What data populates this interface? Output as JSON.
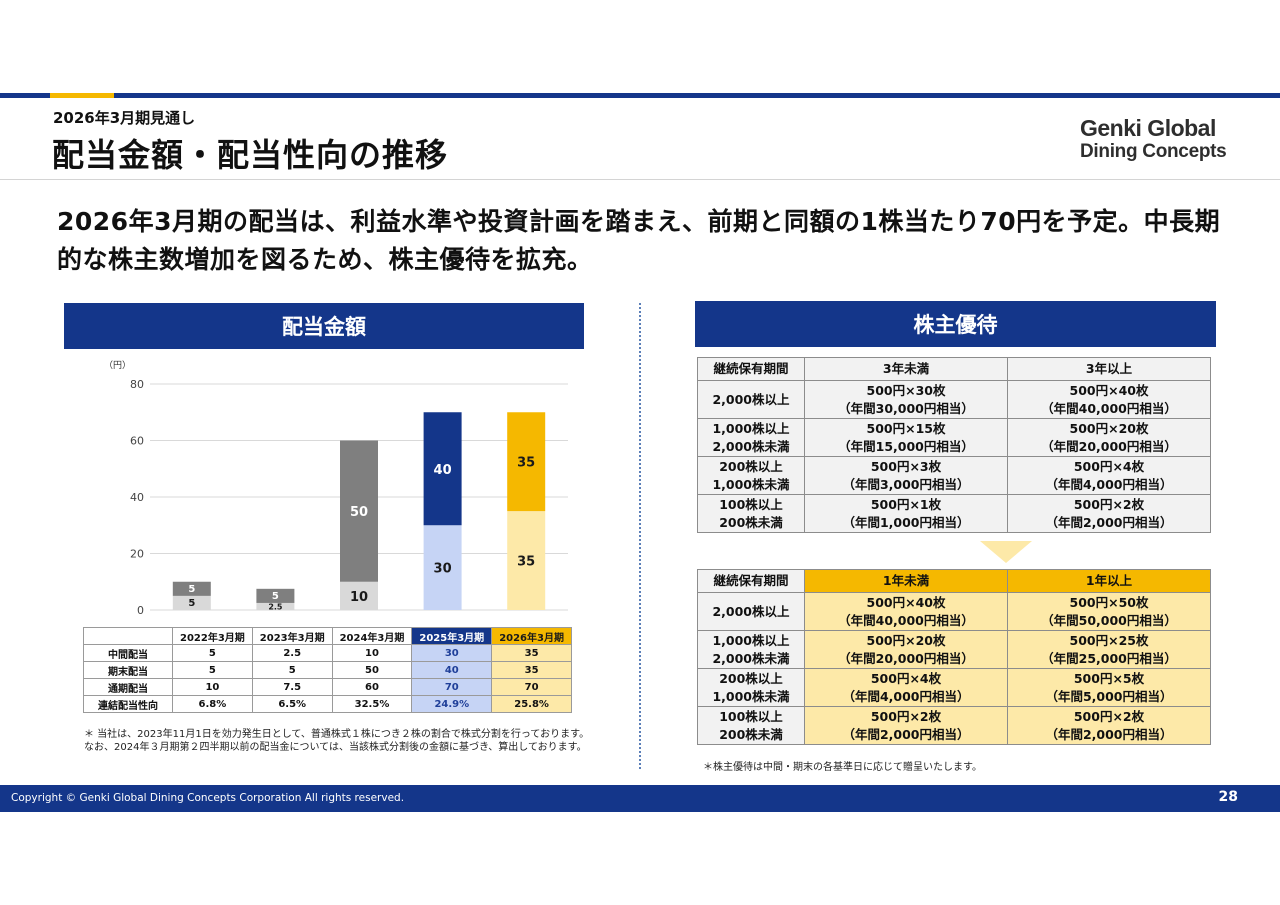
{
  "header": {
    "subtitle": "2026年3月期見通し",
    "title": "配当金額・配当性向の推移",
    "logo_line1": "Genki Global",
    "logo_line2": "Dining Concepts"
  },
  "lead": "2026年3月期の配当は、利益水準や投資計画を踏まえ、前期と同額の1株当たり70円を予定。中長期的な株主数増加を図るため、株主優待を拡充。",
  "left": {
    "heading": "配当金額",
    "note": "＊ 当社は、2023年11月1日を効力発生日として、普通株式１株につき２株の割合で株式分割を行っております。なお、2024年３月期第２四半期以前の配当金については、当該株式分割後の金額に基づき、算出しております。"
  },
  "chart_data": {
    "type": "bar",
    "stacked": true,
    "unit_label": "（円）",
    "categories": [
      "2022年3月期",
      "2023年3月期",
      "2024年3月期",
      "2025年3月期",
      "2026年3月期"
    ],
    "series": [
      {
        "name": "中間配当",
        "values": [
          5,
          2.5,
          10,
          30,
          35
        ],
        "labels": [
          "5",
          "2.5",
          "10",
          "30",
          "35"
        ]
      },
      {
        "name": "期末配当",
        "values": [
          5,
          5,
          50,
          40,
          35
        ],
        "labels": [
          "5",
          "5",
          "50",
          "40",
          "35"
        ]
      }
    ],
    "bar_colors": {
      "interim": [
        "#d9d9d9",
        "#d9d9d9",
        "#d9d9d9",
        "#c6d4f5",
        "#fde9a8"
      ],
      "final": [
        "#7f7f7f",
        "#7f7f7f",
        "#7f7f7f",
        "#14368a",
        "#f5b800"
      ]
    },
    "yticks": [
      0,
      20,
      40,
      60,
      80
    ],
    "ylim": [
      0,
      80
    ],
    "grid": true,
    "table": {
      "rows": [
        {
          "label": "中間配当",
          "values": [
            "5",
            "2.5",
            "10",
            "30",
            "35"
          ]
        },
        {
          "label": "期末配当",
          "values": [
            "5",
            "5",
            "50",
            "40",
            "35"
          ]
        },
        {
          "label": "通期配当",
          "values": [
            "10",
            "7.5",
            "60",
            "70",
            "70"
          ]
        },
        {
          "label": "連結配当性向",
          "values": [
            "6.8%",
            "6.5%",
            "32.5%",
            "24.9%",
            "25.8%"
          ]
        }
      ]
    }
  },
  "right": {
    "heading": "株主優待",
    "current": {
      "header": [
        "継続保有期間",
        "3年未満",
        "3年以上"
      ],
      "rows": [
        {
          "h1": "2,000株以上",
          "h2": "",
          "a1": "500円×30枚",
          "a2": "（年間30,000円相当）",
          "b1": "500円×40枚",
          "b2": "（年間40,000円相当）"
        },
        {
          "h1": "1,000株以上",
          "h2": "2,000株未満",
          "a1": "500円×15枚",
          "a2": "（年間15,000円相当）",
          "b1": "500円×20枚",
          "b2": "（年間20,000円相当）"
        },
        {
          "h1": "200株以上",
          "h2": "1,000株未満",
          "a1": "500円×3枚",
          "a2": "（年間3,000円相当）",
          "b1": "500円×4枚",
          "b2": "（年間4,000円相当）"
        },
        {
          "h1": "100株以上",
          "h2": "200株未満",
          "a1": "500円×1枚",
          "a2": "（年間1,000円相当）",
          "b1": "500円×2枚",
          "b2": "（年間2,000円相当）"
        }
      ]
    },
    "new": {
      "header": [
        "継続保有期間",
        "1年未満",
        "1年以上"
      ],
      "rows": [
        {
          "h1": "2,000株以上",
          "h2": "",
          "a1": "500円×40枚",
          "a2": "（年間40,000円相当）",
          "b1": "500円×50枚",
          "b2": "（年間50,000円相当）"
        },
        {
          "h1": "1,000株以上",
          "h2": "2,000株未満",
          "a1": "500円×20枚",
          "a2": "（年間20,000円相当）",
          "b1": "500円×25枚",
          "b2": "（年間25,000円相当）"
        },
        {
          "h1": "200株以上",
          "h2": "1,000株未満",
          "a1": "500円×4枚",
          "a2": "（年間4,000円相当）",
          "b1": "500円×5枚",
          "b2": "（年間5,000円相当）"
        },
        {
          "h1": "100株以上",
          "h2": "200株未満",
          "a1": "500円×2枚",
          "a2": "（年間2,000円相当）",
          "b1": "500円×2枚",
          "b2": "（年間2,000円相当）"
        }
      ]
    },
    "note": "＊株主優待は中間・期末の各基準日に応じて贈呈いたします。"
  },
  "footer": {
    "copyright": "Copyright © Genki Global Dining Concepts Corporation All rights reserved.",
    "page": "28"
  }
}
